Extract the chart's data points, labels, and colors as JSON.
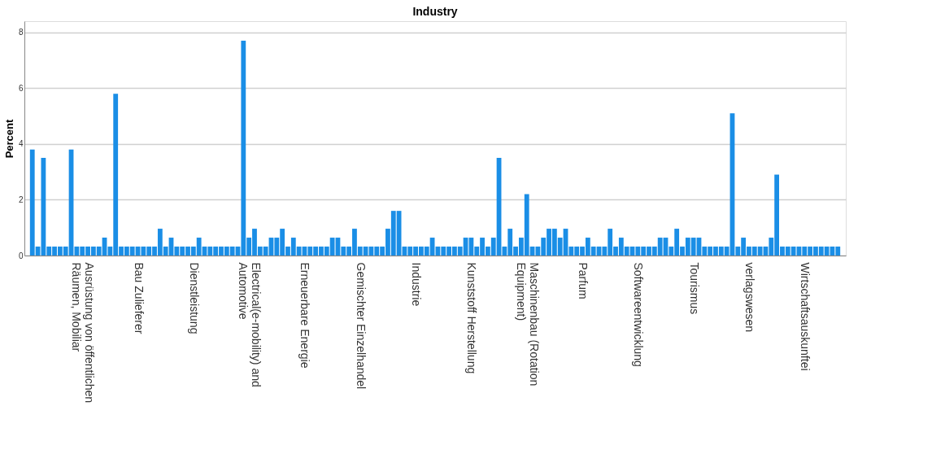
{
  "chart_data": {
    "type": "bar",
    "title": "Industry",
    "ylabel": "Percent",
    "categories": [
      null,
      null,
      null,
      null,
      null,
      null,
      null,
      null,
      null,
      "Ausrüstung von öffentlichen Räumen, Mobiliar",
      null,
      null,
      null,
      null,
      null,
      null,
      null,
      null,
      null,
      "Bau Zulieferer",
      null,
      null,
      null,
      null,
      null,
      null,
      null,
      null,
      null,
      "Dienstleistung",
      null,
      null,
      null,
      null,
      null,
      null,
      null,
      null,
      null,
      "Electrical(e-mobility) and Automotive",
      null,
      null,
      null,
      null,
      null,
      null,
      null,
      null,
      null,
      "Erneuerbare Energie",
      null,
      null,
      null,
      null,
      null,
      null,
      null,
      null,
      null,
      "Gemischter Einzelhandel",
      null,
      null,
      null,
      null,
      null,
      null,
      null,
      null,
      null,
      "Industrie",
      null,
      null,
      null,
      null,
      null,
      null,
      null,
      null,
      null,
      "Kunststoff Herstellung",
      null,
      null,
      null,
      null,
      null,
      null,
      null,
      null,
      null,
      "Maschinenbau (Rotation Equipment)",
      null,
      null,
      null,
      null,
      null,
      null,
      null,
      null,
      null,
      "Parfum",
      null,
      null,
      null,
      null,
      null,
      null,
      null,
      null,
      null,
      "Softwareentwicklung",
      null,
      null,
      null,
      null,
      null,
      null,
      null,
      null,
      null,
      "Tourismus",
      null,
      null,
      null,
      null,
      null,
      null,
      null,
      null,
      null,
      "verlagswesen",
      null,
      null,
      null,
      null,
      null,
      null,
      null,
      null,
      null,
      "Wirtschaftsauskunftei",
      null,
      null,
      null,
      null,
      null,
      null
    ],
    "values": [
      3.8,
      0.32,
      3.5,
      0.32,
      0.32,
      0.32,
      0.32,
      3.8,
      0.32,
      0.32,
      0.32,
      0.32,
      0.32,
      0.64,
      0.32,
      5.8,
      0.32,
      0.32,
      0.32,
      0.32,
      0.32,
      0.32,
      0.32,
      0.96,
      0.32,
      0.64,
      0.32,
      0.32,
      0.32,
      0.32,
      0.64,
      0.32,
      0.32,
      0.32,
      0.32,
      0.32,
      0.32,
      0.32,
      7.7,
      0.64,
      0.96,
      0.32,
      0.32,
      0.64,
      0.64,
      0.96,
      0.32,
      0.64,
      0.32,
      0.32,
      0.32,
      0.32,
      0.32,
      0.32,
      0.64,
      0.64,
      0.32,
      0.32,
      0.96,
      0.32,
      0.32,
      0.32,
      0.32,
      0.32,
      0.96,
      1.6,
      1.6,
      0.32,
      0.32,
      0.32,
      0.32,
      0.32,
      0.64,
      0.32,
      0.32,
      0.32,
      0.32,
      0.32,
      0.64,
      0.64,
      0.32,
      0.64,
      0.32,
      0.64,
      3.5,
      0.32,
      0.96,
      0.32,
      0.64,
      2.2,
      0.32,
      0.32,
      0.64,
      0.96,
      0.96,
      0.64,
      0.96,
      0.32,
      0.32,
      0.32,
      0.64,
      0.32,
      0.32,
      0.32,
      0.96,
      0.32,
      0.64,
      0.32,
      0.32,
      0.32,
      0.32,
      0.32,
      0.32,
      0.64,
      0.64,
      0.32,
      0.96,
      0.32,
      0.64,
      0.64,
      0.64,
      0.32,
      0.32,
      0.32,
      0.32,
      0.32,
      5.1,
      0.32,
      0.64,
      0.32,
      0.32,
      0.32,
      0.32,
      0.64,
      2.9,
      0.32,
      0.32,
      0.32,
      0.32,
      0.32,
      0.32,
      0.32,
      0.32,
      0.32,
      0.32,
      0.32
    ],
    "color": "#1a8ee6",
    "ylim": [
      0,
      8.4
    ],
    "yticks": [
      0,
      2,
      4,
      6,
      8
    ],
    "grid": "y"
  }
}
